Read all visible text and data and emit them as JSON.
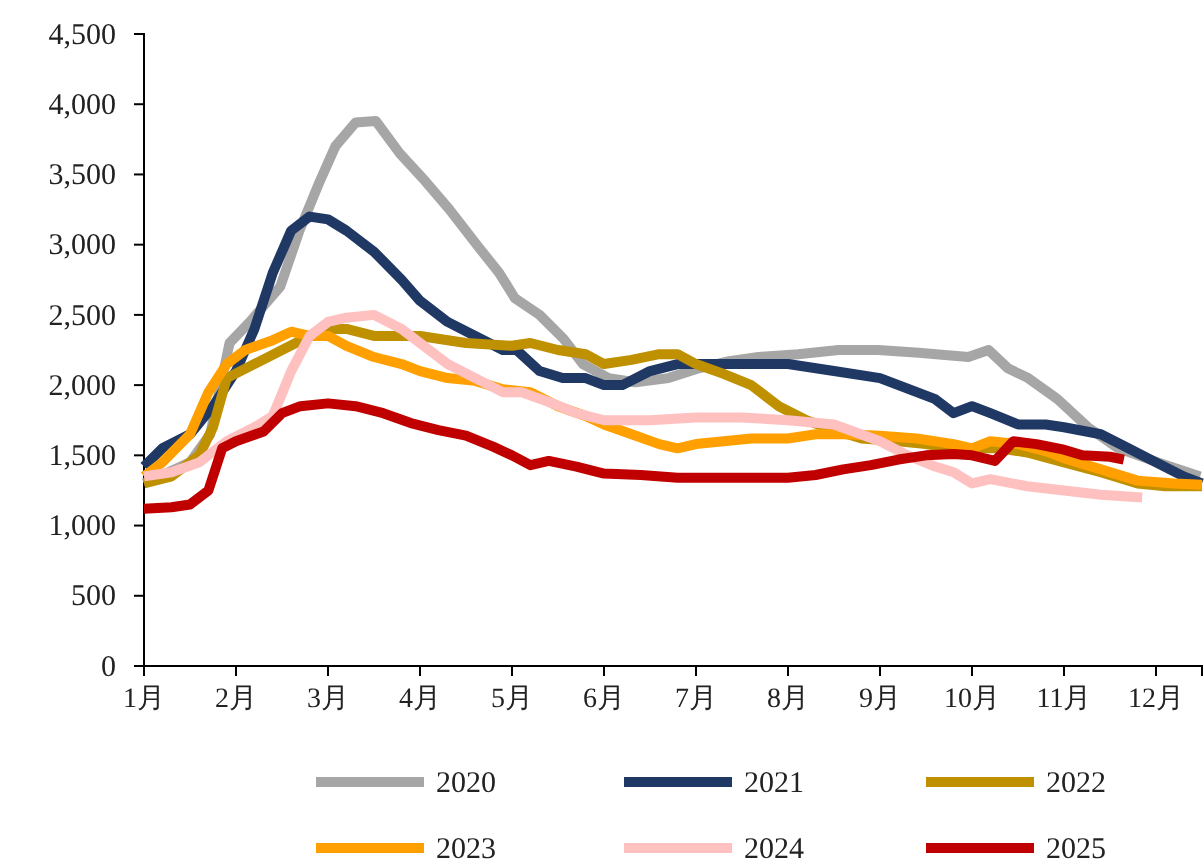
{
  "chart_data": {
    "type": "line",
    "xlim": [
      1,
      12.5
    ],
    "xticks": [
      {
        "value": 1,
        "label": "1月"
      },
      {
        "value": 2,
        "label": "2月"
      },
      {
        "value": 3,
        "label": "3月"
      },
      {
        "value": 4,
        "label": "4月"
      },
      {
        "value": 5,
        "label": "5月"
      },
      {
        "value": 6,
        "label": "6月"
      },
      {
        "value": 7,
        "label": "7月"
      },
      {
        "value": 8,
        "label": "8月"
      },
      {
        "value": 9,
        "label": "9月"
      },
      {
        "value": 10,
        "label": "10月"
      },
      {
        "value": 11,
        "label": "11月"
      },
      {
        "value": 12,
        "label": "12月"
      }
    ],
    "ylim": [
      0,
      4500
    ],
    "yticks": [
      {
        "value": 0,
        "label": "0"
      },
      {
        "value": 500,
        "label": "500"
      },
      {
        "value": 1000,
        "label": "1,000"
      },
      {
        "value": 1500,
        "label": "1,500"
      },
      {
        "value": 2000,
        "label": "2,000"
      },
      {
        "value": 2500,
        "label": "2,500"
      },
      {
        "value": 3000,
        "label": "3,000"
      },
      {
        "value": 3500,
        "label": "3,500"
      },
      {
        "value": 4000,
        "label": "4,000"
      },
      {
        "value": 4500,
        "label": "4,500"
      }
    ],
    "grid": false,
    "legend": "bottom",
    "marker": "none",
    "line_style": "solid",
    "series": [
      {
        "name": "2020",
        "color": "#a6a6a6",
        "x": [
          1,
          1.17,
          1.5,
          1.72,
          1.93,
          2.15,
          2.48,
          2.69,
          2.91,
          3.08,
          3.3,
          3.52,
          3.78,
          4.06,
          4.32,
          4.64,
          4.86,
          5.03,
          5.3,
          5.56,
          5.77,
          6.05,
          6.34,
          6.7,
          7.03,
          7.36,
          7.68,
          8.11,
          8.55,
          8.98,
          9.42,
          9.96,
          10.18,
          10.39,
          10.61,
          10.93,
          11.26,
          11.59,
          12.02,
          12.48
        ],
        "values": [
          1300,
          1350,
          1450,
          1650,
          2300,
          2450,
          2700,
          3100,
          3450,
          3700,
          3870,
          3880,
          3650,
          3450,
          3250,
          2980,
          2800,
          2620,
          2500,
          2330,
          2150,
          2050,
          2020,
          2050,
          2120,
          2170,
          2200,
          2220,
          2250,
          2250,
          2230,
          2200,
          2250,
          2120,
          2050,
          1900,
          1700,
          1550,
          1450,
          1350
        ]
      },
      {
        "name": "2021",
        "color": "#1f3864",
        "x": [
          1,
          1.2,
          1.5,
          1.75,
          2,
          2.2,
          2.4,
          2.6,
          2.8,
          3,
          3.2,
          3.5,
          3.8,
          4,
          4.3,
          4.6,
          4.9,
          5.05,
          5.3,
          5.55,
          5.8,
          6,
          6.2,
          6.5,
          6.8,
          7,
          7.5,
          8,
          8.5,
          9,
          9.4,
          9.6,
          9.8,
          10,
          10.2,
          10.5,
          10.8,
          11,
          11.4,
          11.7,
          12,
          12.3,
          12.5
        ],
        "values": [
          1420,
          1550,
          1650,
          1850,
          2100,
          2400,
          2800,
          3100,
          3200,
          3180,
          3100,
          2950,
          2750,
          2600,
          2450,
          2350,
          2250,
          2250,
          2100,
          2050,
          2050,
          2000,
          2000,
          2100,
          2150,
          2150,
          2150,
          2150,
          2100,
          2050,
          1950,
          1900,
          1800,
          1850,
          1800,
          1720,
          1720,
          1700,
          1650,
          1550,
          1450,
          1350,
          1300
        ]
      },
      {
        "name": "2022",
        "color": "#bf9000",
        "x": [
          1,
          1.3,
          1.6,
          1.75,
          1.9,
          2.2,
          2.5,
          2.8,
          3,
          3.2,
          3.5,
          4,
          4.5,
          5,
          5.2,
          5.5,
          5.8,
          6,
          6.3,
          6.6,
          6.8,
          7,
          7.3,
          7.6,
          7.9,
          8.2,
          8.5,
          8.8,
          9.2,
          9.5,
          9.8,
          10,
          10.3,
          10.6,
          11,
          11.4,
          11.8,
          12.1,
          12.5
        ],
        "values": [
          1300,
          1350,
          1500,
          1700,
          2050,
          2150,
          2250,
          2350,
          2400,
          2400,
          2350,
          2350,
          2300,
          2280,
          2300,
          2250,
          2220,
          2150,
          2180,
          2220,
          2220,
          2150,
          2080,
          2000,
          1850,
          1750,
          1680,
          1620,
          1600,
          1580,
          1550,
          1550,
          1550,
          1520,
          1450,
          1380,
          1300,
          1280,
          1280
        ]
      },
      {
        "name": "2023",
        "color": "#ffa000",
        "x": [
          1,
          1.2,
          1.5,
          1.7,
          1.9,
          2.1,
          2.4,
          2.6,
          2.8,
          3,
          3.2,
          3.5,
          3.8,
          4,
          4.3,
          4.6,
          4.9,
          5.2,
          5.5,
          5.8,
          6,
          6.3,
          6.6,
          6.8,
          7,
          7.3,
          7.6,
          8,
          8.3,
          8.6,
          9,
          9.4,
          9.8,
          10,
          10.2,
          10.5,
          10.8,
          11,
          11.4,
          11.8,
          12.2,
          12.5
        ],
        "values": [
          1350,
          1450,
          1650,
          1950,
          2150,
          2250,
          2320,
          2380,
          2350,
          2350,
          2280,
          2200,
          2150,
          2100,
          2050,
          2030,
          1970,
          1950,
          1850,
          1780,
          1720,
          1650,
          1580,
          1550,
          1580,
          1600,
          1620,
          1620,
          1650,
          1650,
          1640,
          1620,
          1580,
          1550,
          1600,
          1580,
          1530,
          1480,
          1400,
          1320,
          1300,
          1290
        ]
      },
      {
        "name": "2024",
        "color": "#ffc0c0",
        "x": [
          1,
          1.3,
          1.6,
          1.9,
          2.2,
          2.4,
          2.6,
          2.8,
          3,
          3.2,
          3.5,
          3.8,
          4,
          4.3,
          4.6,
          4.9,
          5.1,
          5.4,
          5.7,
          6,
          6.5,
          7,
          7.5,
          8,
          8.5,
          9,
          9.3,
          9.6,
          9.8,
          10,
          10.2,
          10.6,
          11,
          11.4,
          11.85
        ],
        "values": [
          1350,
          1380,
          1450,
          1600,
          1700,
          1780,
          2100,
          2350,
          2450,
          2480,
          2500,
          2400,
          2300,
          2150,
          2050,
          1950,
          1950,
          1880,
          1800,
          1750,
          1750,
          1770,
          1770,
          1750,
          1720,
          1600,
          1500,
          1420,
          1380,
          1300,
          1330,
          1280,
          1250,
          1220,
          1200
        ]
      },
      {
        "name": "2025",
        "color": "#c00000",
        "x": [
          1,
          1.3,
          1.5,
          1.7,
          1.85,
          2,
          2.3,
          2.5,
          2.7,
          3,
          3.3,
          3.6,
          3.9,
          4.2,
          4.5,
          4.8,
          5,
          5.2,
          5.4,
          5.7,
          6,
          6.4,
          6.8,
          7.2,
          7.6,
          8,
          8.3,
          8.6,
          8.9,
          9.2,
          9.5,
          9.8,
          10,
          10.25,
          10.45,
          10.7,
          11,
          11.2,
          11.5,
          11.65
        ],
        "values": [
          1120,
          1130,
          1150,
          1250,
          1550,
          1600,
          1670,
          1800,
          1850,
          1870,
          1850,
          1800,
          1730,
          1680,
          1640,
          1560,
          1500,
          1430,
          1460,
          1420,
          1370,
          1360,
          1340,
          1340,
          1340,
          1340,
          1360,
          1400,
          1430,
          1470,
          1500,
          1510,
          1500,
          1460,
          1600,
          1580,
          1540,
          1500,
          1490,
          1470
        ]
      }
    ]
  }
}
